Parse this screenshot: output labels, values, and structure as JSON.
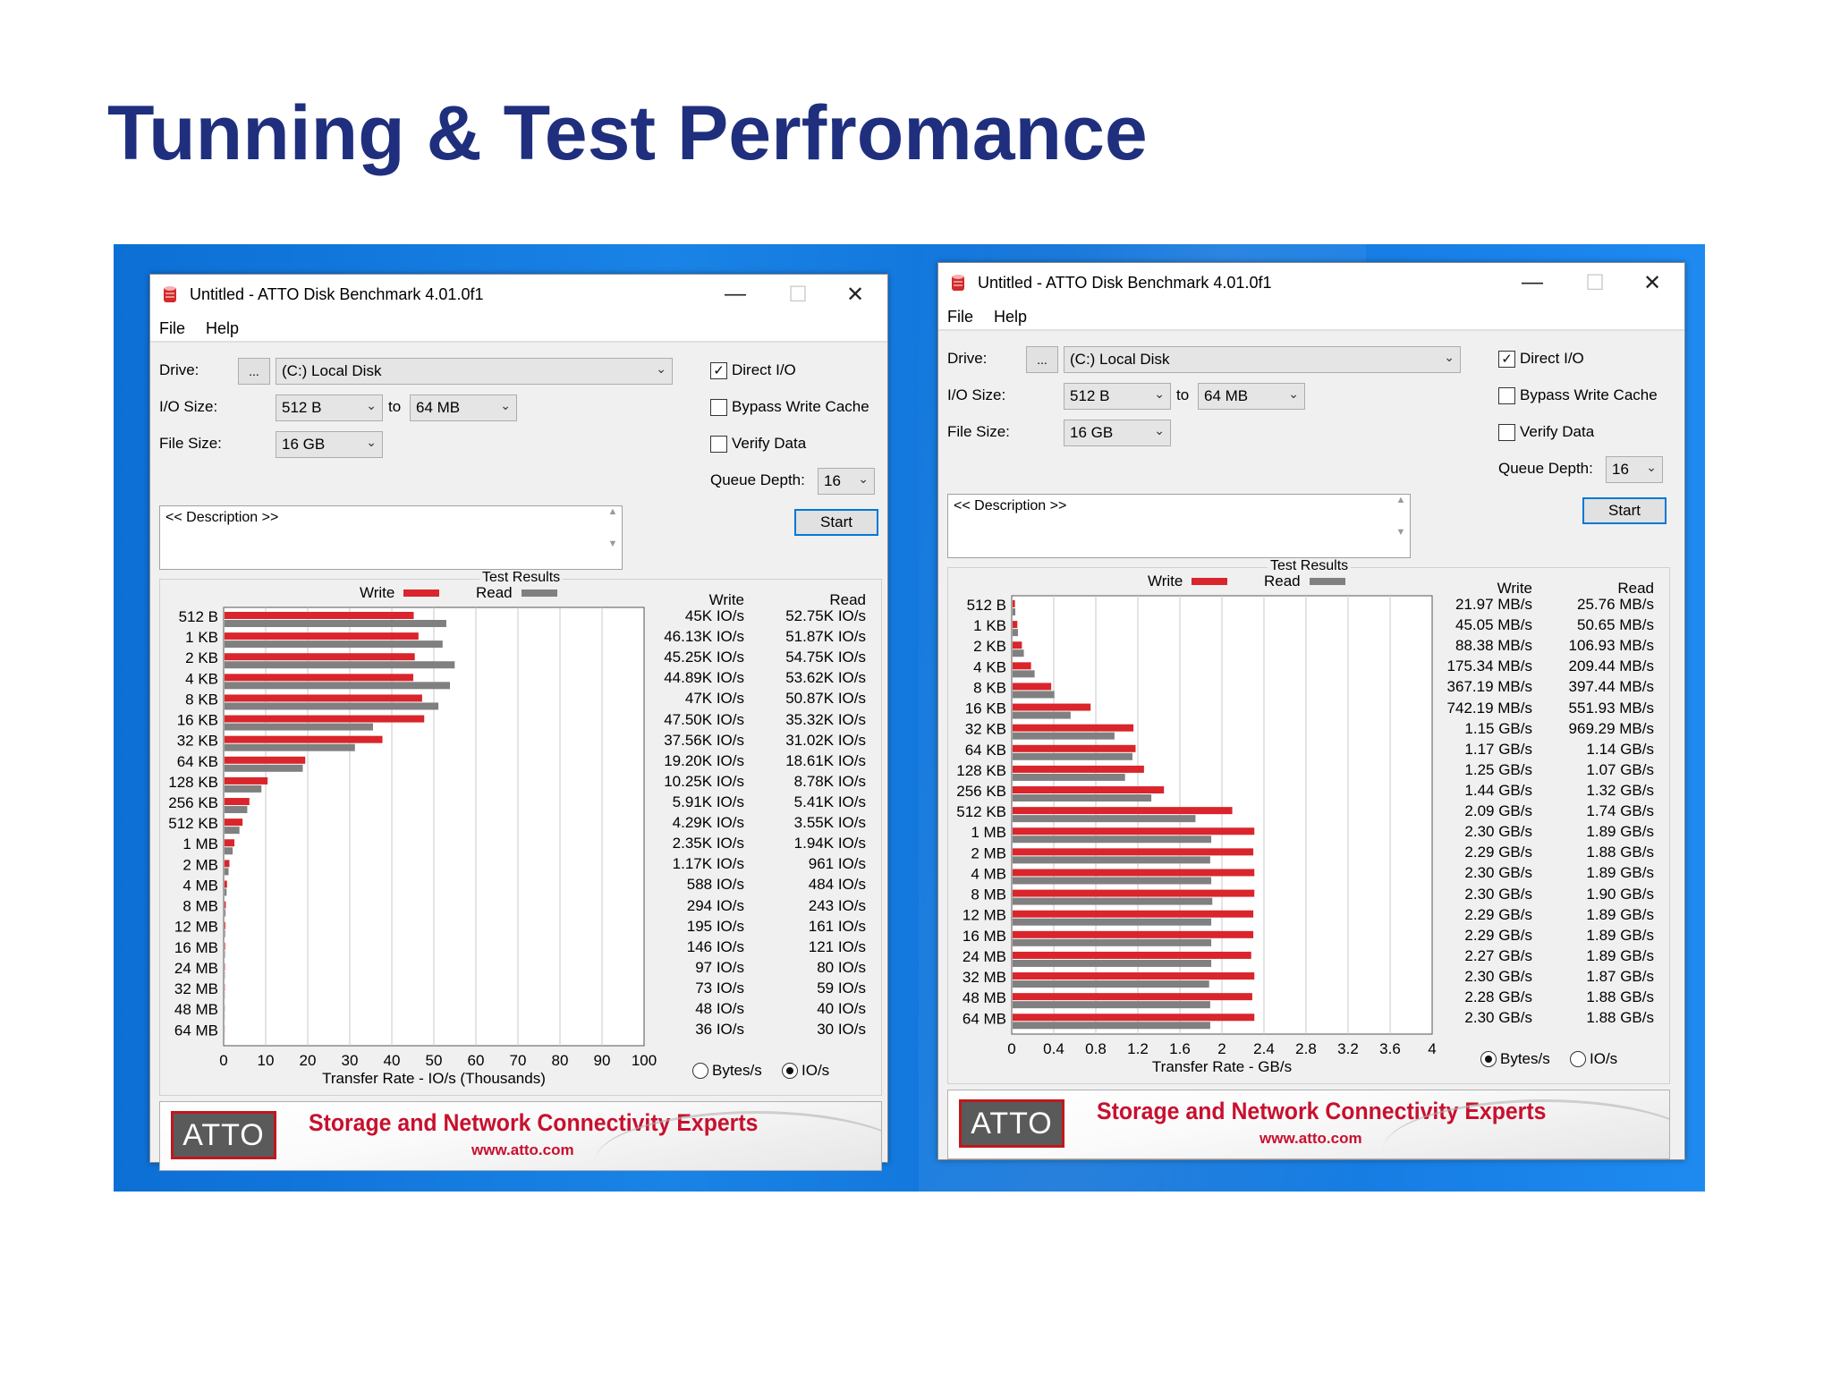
{
  "slide": {
    "title": "Tunning & Test Perfromance"
  },
  "windows": [
    {
      "title": "Untitled - ATTO Disk Benchmark 4.01.0f1",
      "menu": [
        "File",
        "Help"
      ],
      "drive_label": "Drive:",
      "drive_browse": "...",
      "drive_value": "(C:) Local Disk",
      "io_size_label": "I/O Size:",
      "io_from": "512 B",
      "io_to_label": "to",
      "io_to": "64 MB",
      "file_size_label": "File Size:",
      "file_size": "16 GB",
      "direct_io": {
        "label": "Direct I/O",
        "checked": true
      },
      "bypass_cache": {
        "label": "Bypass Write Cache",
        "checked": false
      },
      "verify_data": {
        "label": "Verify Data",
        "checked": false
      },
      "queue_depth_label": "Queue Depth:",
      "queue_depth": "16",
      "description": "<< Description >>",
      "start_label": "Start",
      "results_title": "Test Results",
      "legend_write": "Write",
      "legend_read": "Read",
      "col_write": "Write",
      "col_read": "Read",
      "radio_bytes": {
        "label": "Bytes/s",
        "selected": false
      },
      "radio_io": {
        "label": "IO/s",
        "selected": true
      },
      "banner_logo": "ATTO",
      "banner_tagline": "Storage and Network Connectivity Experts",
      "banner_url": "www.atto.com",
      "chart_data": {
        "type": "bar",
        "orientation": "horizontal",
        "title": "Test Results",
        "xlabel": "Transfer Rate - IO/s (Thousands)",
        "xlim": [
          0,
          100
        ],
        "xticks": [
          "0",
          "10",
          "20",
          "30",
          "40",
          "50",
          "60",
          "70",
          "80",
          "90",
          "100"
        ],
        "categories": [
          "512 B",
          "1 KB",
          "2 KB",
          "4 KB",
          "8 KB",
          "16 KB",
          "32 KB",
          "64 KB",
          "128 KB",
          "256 KB",
          "512 KB",
          "1 MB",
          "2 MB",
          "4 MB",
          "8 MB",
          "12 MB",
          "16 MB",
          "24 MB",
          "32 MB",
          "48 MB",
          "64 MB"
        ],
        "series": [
          {
            "name": "Write",
            "color": "#d9252b",
            "values": [
              45,
              46.13,
              45.25,
              44.89,
              47,
              47.5,
              37.56,
              19.2,
              10.25,
              5.91,
              4.29,
              2.35,
              1.17,
              0.588,
              0.294,
              0.195,
              0.146,
              0.097,
              0.073,
              0.048,
              0.036
            ]
          },
          {
            "name": "Read",
            "color": "#808080",
            "values": [
              52.75,
              51.87,
              54.75,
              53.62,
              50.87,
              35.32,
              31.02,
              18.61,
              8.78,
              5.41,
              3.55,
              1.94,
              0.961,
              0.484,
              0.243,
              0.161,
              0.121,
              0.08,
              0.059,
              0.04,
              0.03
            ]
          }
        ],
        "write_text": [
          "45K IO/s",
          "46.13K IO/s",
          "45.25K IO/s",
          "44.89K IO/s",
          "47K IO/s",
          "47.50K IO/s",
          "37.56K IO/s",
          "19.20K IO/s",
          "10.25K IO/s",
          "5.91K IO/s",
          "4.29K IO/s",
          "2.35K IO/s",
          "1.17K IO/s",
          "588 IO/s",
          "294 IO/s",
          "195 IO/s",
          "146 IO/s",
          "97 IO/s",
          "73 IO/s",
          "48 IO/s",
          "36 IO/s"
        ],
        "read_text": [
          "52.75K IO/s",
          "51.87K IO/s",
          "54.75K IO/s",
          "53.62K IO/s",
          "50.87K IO/s",
          "35.32K IO/s",
          "31.02K IO/s",
          "18.61K IO/s",
          "8.78K IO/s",
          "5.41K IO/s",
          "3.55K IO/s",
          "1.94K IO/s",
          "961 IO/s",
          "484 IO/s",
          "243 IO/s",
          "161 IO/s",
          "121 IO/s",
          "80 IO/s",
          "59 IO/s",
          "40 IO/s",
          "30 IO/s"
        ]
      }
    },
    {
      "title": "Untitled - ATTO Disk Benchmark 4.01.0f1",
      "menu": [
        "File",
        "Help"
      ],
      "drive_label": "Drive:",
      "drive_browse": "...",
      "drive_value": "(C:) Local Disk",
      "io_size_label": "I/O Size:",
      "io_from": "512 B",
      "io_to_label": "to",
      "io_to": "64 MB",
      "file_size_label": "File Size:",
      "file_size": "16 GB",
      "direct_io": {
        "label": "Direct I/O",
        "checked": true
      },
      "bypass_cache": {
        "label": "Bypass Write Cache",
        "checked": false
      },
      "verify_data": {
        "label": "Verify Data",
        "checked": false
      },
      "queue_depth_label": "Queue Depth:",
      "queue_depth": "16",
      "description": "<< Description >>",
      "start_label": "Start",
      "results_title": "Test Results",
      "legend_write": "Write",
      "legend_read": "Read",
      "col_write": "Write",
      "col_read": "Read",
      "radio_bytes": {
        "label": "Bytes/s",
        "selected": true
      },
      "radio_io": {
        "label": "IO/s",
        "selected": false
      },
      "banner_logo": "ATTO",
      "banner_tagline": "Storage and Network Connectivity Experts",
      "banner_url": "www.atto.com",
      "chart_data": {
        "type": "bar",
        "orientation": "horizontal",
        "title": "Test Results",
        "xlabel": "Transfer Rate - GB/s",
        "xlim": [
          0,
          4
        ],
        "xticks": [
          "0",
          "0.4",
          "0.8",
          "1.2",
          "1.6",
          "2",
          "2.4",
          "2.8",
          "3.2",
          "3.6",
          "4"
        ],
        "categories": [
          "512 B",
          "1 KB",
          "2 KB",
          "4 KB",
          "8 KB",
          "16 KB",
          "32 KB",
          "64 KB",
          "128 KB",
          "256 KB",
          "512 KB",
          "1 MB",
          "2 MB",
          "4 MB",
          "8 MB",
          "12 MB",
          "16 MB",
          "24 MB",
          "32 MB",
          "48 MB",
          "64 MB"
        ],
        "series": [
          {
            "name": "Write",
            "color": "#d9252b",
            "values": [
              0.02197,
              0.04505,
              0.08838,
              0.17534,
              0.36719,
              0.74219,
              1.15,
              1.17,
              1.25,
              1.44,
              2.09,
              2.3,
              2.29,
              2.3,
              2.3,
              2.29,
              2.29,
              2.27,
              2.3,
              2.28,
              2.3
            ]
          },
          {
            "name": "Read",
            "color": "#808080",
            "values": [
              0.02576,
              0.05065,
              0.10693,
              0.20944,
              0.39744,
              0.55193,
              0.96929,
              1.14,
              1.07,
              1.32,
              1.74,
              1.89,
              1.88,
              1.89,
              1.9,
              1.89,
              1.89,
              1.89,
              1.87,
              1.88,
              1.88
            ]
          }
        ],
        "write_text": [
          "21.97 MB/s",
          "45.05 MB/s",
          "88.38 MB/s",
          "175.34 MB/s",
          "367.19 MB/s",
          "742.19 MB/s",
          "1.15 GB/s",
          "1.17 GB/s",
          "1.25 GB/s",
          "1.44 GB/s",
          "2.09 GB/s",
          "2.30 GB/s",
          "2.29 GB/s",
          "2.30 GB/s",
          "2.30 GB/s",
          "2.29 GB/s",
          "2.29 GB/s",
          "2.27 GB/s",
          "2.30 GB/s",
          "2.28 GB/s",
          "2.30 GB/s"
        ],
        "read_text": [
          "25.76 MB/s",
          "50.65 MB/s",
          "106.93 MB/s",
          "209.44 MB/s",
          "397.44 MB/s",
          "551.93 MB/s",
          "969.29 MB/s",
          "1.14 GB/s",
          "1.07 GB/s",
          "1.32 GB/s",
          "1.74 GB/s",
          "1.89 GB/s",
          "1.88 GB/s",
          "1.89 GB/s",
          "1.90 GB/s",
          "1.89 GB/s",
          "1.89 GB/s",
          "1.89 GB/s",
          "1.87 GB/s",
          "1.88 GB/s",
          "1.88 GB/s"
        ]
      }
    }
  ]
}
